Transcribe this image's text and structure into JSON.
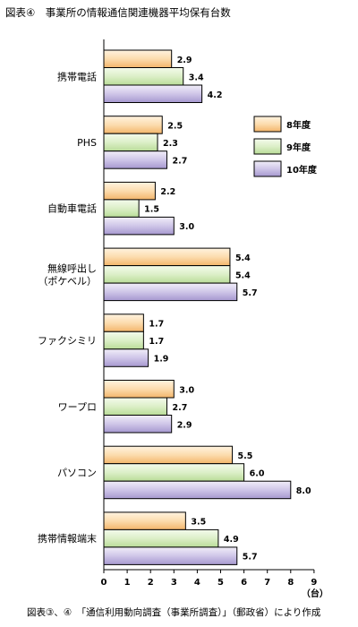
{
  "title": "図表④　事業所の情報通信関連機器平均保有台数",
  "source": "図表③、④　「通信利用動向調査（事業所調査）」（郵政省）により作成",
  "chart_data": {
    "type": "bar",
    "orientation": "horizontal",
    "categories": [
      "携帯電話",
      "PHS",
      "自動車電話",
      "無線呼出し\n（ポケベル）",
      "ファクシミリ",
      "ワープロ",
      "パソコン",
      "携帯情報端末"
    ],
    "series": [
      {
        "name": "8年度",
        "color": "#f6c98c",
        "values": [
          2.9,
          2.5,
          2.2,
          5.4,
          1.7,
          3.0,
          5.5,
          3.5
        ]
      },
      {
        "name": "9年度",
        "color": "#cfe8b4",
        "values": [
          3.4,
          2.3,
          1.5,
          5.4,
          1.7,
          2.7,
          6.0,
          4.9
        ]
      },
      {
        "name": "10年度",
        "color": "#b8acd8",
        "values": [
          4.2,
          2.7,
          3.0,
          5.7,
          1.9,
          2.9,
          8.0,
          5.7
        ]
      }
    ],
    "value_labels": [
      [
        "2.9",
        "2.5",
        "2.2",
        "5.4",
        "1.7",
        "3.0",
        "5.5",
        "3.5"
      ],
      [
        "3.4",
        "2.3",
        "1.5",
        "5.4",
        "1.7",
        "2.7",
        "6.0",
        "4.9"
      ],
      [
        "4.2",
        "2.7",
        "3.0",
        "5.7",
        "1.9",
        "2.9",
        "8.0",
        "5.7"
      ]
    ],
    "x_ticks": [
      0,
      1,
      2,
      3,
      4,
      5,
      6,
      7,
      8,
      9
    ],
    "xlim": [
      0,
      9
    ],
    "unit": "（台）",
    "grid": false,
    "legend_position": "top-right"
  }
}
